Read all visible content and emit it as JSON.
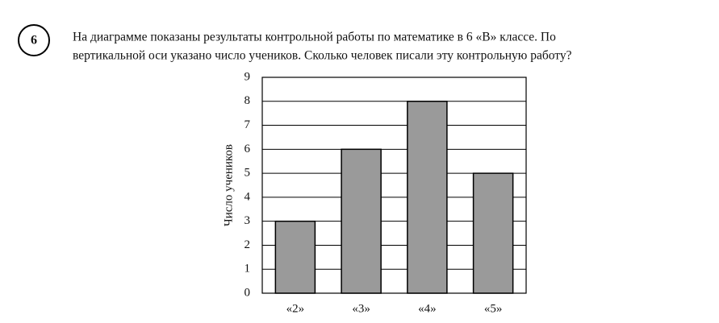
{
  "problem": {
    "number": "6",
    "text_lines": [
      "На диаграмме показаны результаты контрольной работы по математике в 6 «В» классе. По",
      "вертикальной оси указано число учеников. Сколько человек писали эту контрольную работу?"
    ]
  },
  "chart_data": {
    "type": "bar",
    "y_label": "Число учеников",
    "categories": [
      "«2»",
      "«3»",
      "«4»",
      "«5»"
    ],
    "values": [
      3,
      6,
      8,
      5
    ],
    "color": "#9a9a9a",
    "ylim": [
      0,
      9
    ],
    "yticks": [
      0,
      1,
      2,
      3,
      4,
      5,
      6,
      7,
      8,
      9
    ],
    "grid": true
  }
}
